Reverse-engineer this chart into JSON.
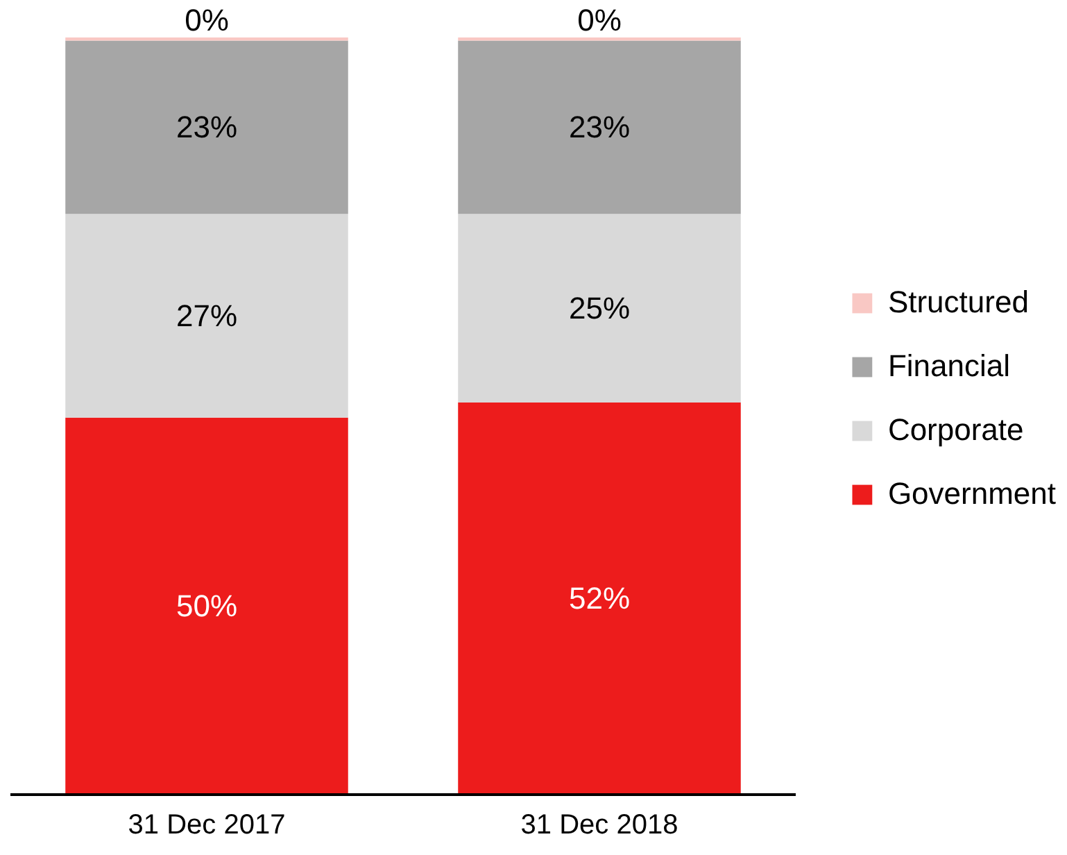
{
  "chart_data": {
    "type": "bar",
    "stacked": true,
    "categories": [
      "31 Dec 2017",
      "31 Dec 2018"
    ],
    "legend": "right",
    "grid": false,
    "series": [
      {
        "name": "Government",
        "color": "#ed1c1c",
        "values": [
          50,
          52
        ],
        "value_labels": [
          "50%",
          "52%"
        ]
      },
      {
        "name": "Corporate",
        "color": "#d9d9d9",
        "values": [
          27,
          25
        ],
        "value_labels": [
          "27%",
          "25%"
        ]
      },
      {
        "name": "Financial",
        "color": "#a6a6a6",
        "values": [
          23,
          23
        ],
        "value_labels": [
          "23%",
          "23%"
        ]
      },
      {
        "name": "Structured",
        "color": "#f9c8c4",
        "values": [
          0.4,
          0.4
        ],
        "value_labels": [
          "0%",
          "0%"
        ]
      }
    ]
  }
}
